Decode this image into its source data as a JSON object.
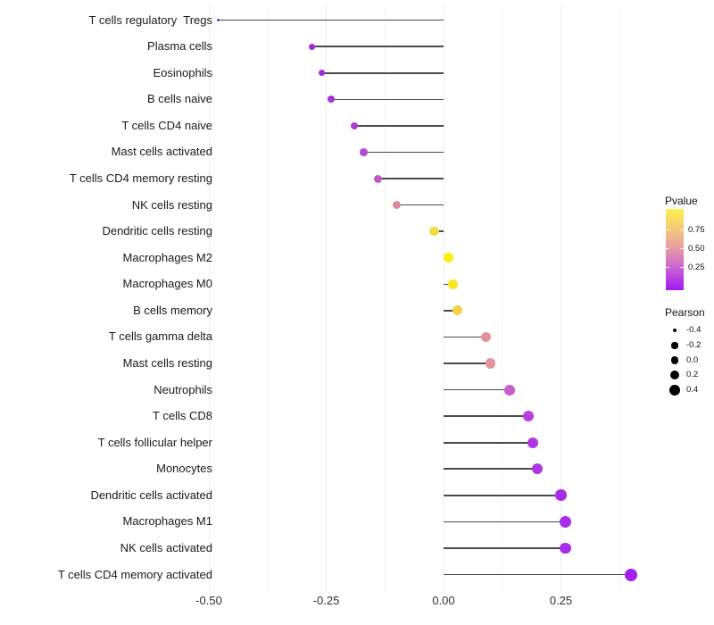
{
  "chart_data": {
    "type": "scatter",
    "variant": "lollipop",
    "title": "",
    "xlabel": "",
    "ylabel": "",
    "x_tick_labels": [
      "-0.50",
      "-0.25",
      "0.00",
      "0.25"
    ],
    "x_tick_values": [
      -0.5,
      -0.25,
      0,
      0.25
    ],
    "x_minor_gridlines": [
      -0.375,
      -0.125,
      0.125,
      0.375
    ],
    "xlim": [
      -0.52,
      0.455
    ],
    "baseline": 0,
    "grid": "vertical-only",
    "legend_position": "right",
    "categories": [
      "T cells regulatory  Tregs",
      "Plasma cells",
      "Eosinophils",
      "B cells naive",
      "T cells CD4 naive",
      "Mast cells activated",
      "T cells CD4 memory resting",
      "NK cells resting",
      "Dendritic cells resting",
      "Macrophages M2",
      "Macrophages M0",
      "B cells memory",
      "T cells gamma delta",
      "Mast cells resting",
      "Neutrophils",
      "T cells CD8",
      "T cells follicular helper",
      "Monocytes",
      "Dendritic cells activated",
      "Macrophages M1",
      "NK cells activated",
      "T cells CD4 memory activated"
    ],
    "rows": [
      {
        "label": "T cells regulatory  Tregs",
        "pearson": -0.48,
        "color": "#8B2BD2"
      },
      {
        "label": "Plasma cells",
        "pearson": -0.28,
        "color": "#A228DD"
      },
      {
        "label": "Eosinophils",
        "pearson": -0.26,
        "color": "#A32ADB"
      },
      {
        "label": "B cells naive",
        "pearson": -0.24,
        "color": "#A832D9"
      },
      {
        "label": "T cells CD4 naive",
        "pearson": -0.19,
        "color": "#AE3ED7"
      },
      {
        "label": "Mast cells activated",
        "pearson": -0.17,
        "color": "#B54BD2"
      },
      {
        "label": "T cells CD4 memory resting",
        "pearson": -0.14,
        "color": "#C158C4"
      },
      {
        "label": "NK cells resting",
        "pearson": -0.1,
        "color": "#DC8C9E"
      },
      {
        "label": "Dendritic cells resting",
        "pearson": -0.02,
        "color": "#EFDB44"
      },
      {
        "label": "Macrophages M2",
        "pearson": 0.01,
        "color": "#F9F00B"
      },
      {
        "label": "Macrophages M0",
        "pearson": 0.02,
        "color": "#F8E522"
      },
      {
        "label": "B cells memory",
        "pearson": 0.03,
        "color": "#F2D24A"
      },
      {
        "label": "T cells gamma delta",
        "pearson": 0.09,
        "color": "#E29299"
      },
      {
        "label": "Mast cells resting",
        "pearson": 0.1,
        "color": "#E0959B"
      },
      {
        "label": "Neutrophils",
        "pearson": 0.14,
        "color": "#C75EC9"
      },
      {
        "label": "T cells CD8",
        "pearson": 0.18,
        "color": "#B840DF"
      },
      {
        "label": "T cells follicular helper",
        "pearson": 0.19,
        "color": "#AF36E3"
      },
      {
        "label": "Monocytes",
        "pearson": 0.2,
        "color": "#AD36E2"
      },
      {
        "label": "Dendritic cells activated",
        "pearson": 0.25,
        "color": "#A72CE9"
      },
      {
        "label": "Macrophages M1",
        "pearson": 0.26,
        "color": "#A72DE8"
      },
      {
        "label": "NK cells activated",
        "pearson": 0.26,
        "color": "#A72CE8"
      },
      {
        "label": "T cells CD4 memory activated",
        "pearson": 0.4,
        "color": "#A21FF0"
      }
    ],
    "series": [
      {
        "name": "Pearson",
        "values": [
          -0.48,
          -0.28,
          -0.26,
          -0.24,
          -0.19,
          -0.17,
          -0.14,
          -0.1,
          -0.02,
          0.01,
          0.02,
          0.03,
          0.09,
          0.1,
          0.14,
          0.18,
          0.19,
          0.2,
          0.25,
          0.26,
          0.26,
          0.4
        ]
      }
    ],
    "color_legend": {
      "title": "Pvalue",
      "tick_labels": [
        "0.75",
        "0.50",
        "0.25"
      ],
      "tick_values": [
        0.75,
        0.5,
        0.25
      ],
      "range": [
        0,
        1
      ],
      "gradient": [
        "#FBF34C",
        "#F2C67E",
        "#E69BA4",
        "#CA62D4",
        "#A118F2"
      ]
    },
    "size_legend": {
      "title": "Pearson",
      "entries": [
        {
          "label": "-0.4",
          "value": -0.4
        },
        {
          "label": "-0.2",
          "value": -0.2
        },
        {
          "label": "0.0",
          "value": 0.0
        },
        {
          "label": "0.2",
          "value": 0.2
        },
        {
          "label": "0.4",
          "value": 0.4
        }
      ]
    },
    "stem_color": "#4a4a4a",
    "gridline_color": "#ededed"
  }
}
